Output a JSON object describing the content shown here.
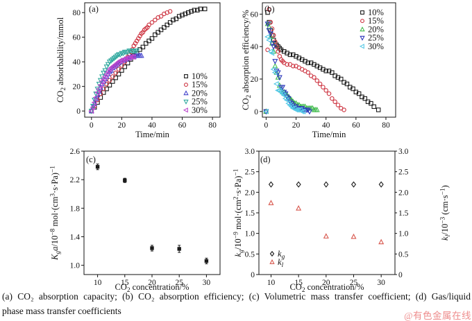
{
  "caption": {
    "line1": "(a) CO₂ absorption capacity; (b) CO₂ absorption efficiency; (c) Volumetric mass transfer coefficient; (d) Gas/liquid",
    "line2": "phase mass transfer coefficients"
  },
  "watermark": {
    "text": "@有色金属在线",
    "color": "#ee8d8d"
  },
  "chart_data": [
    {
      "id": "a",
      "type": "scatter",
      "tag": "(a)",
      "xlabel": "Time/min",
      "ylabel": "CO_{2} absorbability/mmol",
      "xlim": [
        -4.5,
        85
      ],
      "ylim": [
        -5,
        88
      ],
      "grid": false,
      "xticks": [
        0,
        20,
        40,
        60,
        80
      ],
      "xtick_labels": [
        "0",
        "20",
        "40",
        "60",
        "80"
      ],
      "yticks": [
        0,
        20,
        40,
        60,
        80
      ],
      "ytick_labels": [
        "0",
        "20",
        "40",
        "60",
        "80"
      ],
      "legend_position": "bottom-right",
      "series": [
        {
          "name": "10%",
          "label": "10%",
          "marker": "square",
          "color": "#1a1a1a",
          "x": [
            0,
            2,
            4,
            6,
            8,
            10,
            12,
            14,
            16,
            18,
            20,
            22,
            24,
            26,
            28,
            30,
            32,
            34,
            36,
            38,
            40,
            42,
            44,
            46,
            48,
            50,
            52,
            54,
            56,
            58,
            60,
            62,
            64,
            66,
            68,
            70,
            72,
            75
          ],
          "y": [
            0,
            3,
            7,
            11,
            15,
            18,
            21,
            24,
            27,
            30,
            33,
            36,
            39,
            42,
            45,
            47,
            50,
            52,
            55,
            57,
            59,
            62,
            64,
            66,
            68,
            70,
            72,
            74,
            75,
            77,
            78,
            79,
            80,
            81,
            82,
            82,
            83,
            83
          ]
        },
        {
          "name": "15%",
          "label": "15%",
          "marker": "circle",
          "color": "#cd3340",
          "x": [
            0,
            2,
            4,
            6,
            8,
            10,
            12,
            14,
            16,
            18,
            20,
            22,
            24,
            25,
            26,
            27,
            28,
            29,
            30,
            31,
            32,
            33,
            34,
            35,
            36,
            37,
            38,
            40,
            42,
            44,
            46,
            48,
            50,
            52
          ],
          "y": [
            0,
            4,
            9,
            14,
            18,
            22,
            25,
            28,
            31,
            34,
            37,
            40,
            44,
            46,
            48,
            50,
            53,
            55,
            57,
            59,
            61,
            63,
            64,
            66,
            67,
            68,
            70,
            72,
            74,
            76,
            77,
            79,
            80,
            81
          ]
        },
        {
          "name": "20%",
          "label": "20%",
          "marker": "triangle-up",
          "color": "#4444cc",
          "x": [
            0,
            1,
            2,
            3,
            4,
            5,
            6,
            7,
            8,
            9,
            10,
            11,
            12,
            13,
            14,
            15,
            16,
            17,
            18,
            19,
            20,
            21,
            22,
            23,
            24,
            25,
            26,
            27,
            28,
            29,
            30,
            31,
            32,
            33
          ],
          "y": [
            0,
            3,
            6,
            10,
            13,
            16,
            19,
            22,
            24,
            26,
            28,
            30,
            32,
            33,
            35,
            36,
            37,
            38,
            39,
            40,
            41,
            41,
            42,
            42,
            43,
            43,
            44,
            44,
            44,
            45,
            45,
            45,
            45,
            45
          ]
        },
        {
          "name": "25%",
          "label": "25%",
          "marker": "triangle-down",
          "color": "#2fa89e",
          "x": [
            0,
            1,
            2,
            3,
            4,
            5,
            6,
            7,
            8,
            9,
            10,
            11,
            12,
            13,
            14,
            15,
            16,
            17,
            18,
            19,
            20,
            21,
            22,
            23,
            24,
            25,
            26,
            27,
            28,
            29,
            30
          ],
          "y": [
            0,
            4,
            9,
            14,
            18,
            22,
            25,
            28,
            31,
            33,
            36,
            38,
            40,
            41,
            42,
            43,
            44,
            45,
            46,
            46,
            47,
            47,
            48,
            48,
            48,
            49,
            49,
            49,
            49,
            49,
            49
          ]
        },
        {
          "name": "30%",
          "label": "30%",
          "marker": "triangle-left",
          "color": "#bb45cc",
          "x": [
            0,
            1,
            2,
            3,
            4,
            5,
            6,
            7,
            8,
            9,
            10,
            11,
            12,
            13,
            14,
            15,
            16,
            17,
            18,
            19,
            20,
            21,
            22,
            23,
            24,
            25,
            26,
            27,
            28
          ],
          "y": [
            0,
            3,
            7,
            11,
            15,
            18,
            21,
            24,
            26,
            28,
            30,
            32,
            34,
            35,
            36,
            37,
            38,
            39,
            40,
            41,
            41,
            42,
            42,
            43,
            43,
            43,
            44,
            44,
            44
          ]
        }
      ]
    },
    {
      "id": "b",
      "type": "scatter",
      "tag": "(b)",
      "xlabel": "Time/min",
      "ylabel": "CO_{2} absorption efficiency/%",
      "xlim": [
        -2.5,
        86.5
      ],
      "ylim": [
        -3.5,
        67
      ],
      "grid": false,
      "xticks": [
        0,
        20,
        40,
        60,
        80
      ],
      "xtick_labels": [
        "0",
        "20",
        "40",
        "60",
        "80"
      ],
      "yticks": [
        0,
        20,
        40,
        60
      ],
      "ytick_labels": [
        "0",
        "20",
        "40",
        "60"
      ],
      "legend_position": "top-right",
      "series": [
        {
          "name": "10%",
          "label": "10%",
          "marker": "square",
          "color": "#1a1a1a",
          "x": [
            0,
            1,
            2,
            3,
            4,
            5,
            6,
            7,
            8,
            9,
            10,
            12,
            14,
            16,
            18,
            20,
            22,
            24,
            26,
            28,
            30,
            32,
            34,
            36,
            38,
            40,
            42,
            44,
            46,
            48,
            50,
            52,
            54,
            56,
            58,
            60,
            62,
            64,
            66,
            68,
            70,
            72,
            75
          ],
          "y": [
            0,
            61,
            55,
            50,
            47,
            44,
            42,
            41,
            40,
            39,
            38,
            37,
            36,
            35,
            35,
            34,
            33,
            32,
            31,
            30,
            30,
            29,
            28,
            27,
            26,
            25,
            25,
            24,
            22,
            21,
            20,
            18,
            17,
            15,
            14,
            12,
            11,
            9,
            8,
            6,
            5,
            3,
            1
          ]
        },
        {
          "name": "15%",
          "label": "15%",
          "marker": "circle",
          "color": "#cd3340",
          "x": [
            1,
            2,
            3,
            4,
            5,
            6,
            7,
            8,
            9,
            10,
            11,
            12,
            14,
            16,
            18,
            20,
            22,
            24,
            26,
            28,
            30,
            32,
            34,
            36,
            38,
            40,
            42,
            44,
            46,
            48,
            50,
            52
          ],
          "y": [
            38,
            63,
            55,
            51,
            47,
            43,
            40,
            37,
            34,
            32,
            31,
            30,
            29,
            29,
            28,
            28,
            27,
            26,
            25,
            24,
            22,
            21,
            19,
            17,
            15,
            13,
            11,
            8,
            6,
            4,
            2,
            1
          ]
        },
        {
          "name": "20%",
          "label": "20%",
          "marker": "triangle-up",
          "color": "#41bb4d",
          "x": [
            0,
            1,
            2,
            3,
            4,
            5,
            6,
            7,
            8,
            9,
            10,
            11,
            12,
            13,
            14,
            15,
            16,
            17,
            18,
            19,
            20,
            21,
            22,
            23,
            24,
            25,
            26,
            27,
            28,
            29,
            30,
            31,
            32,
            33,
            34
          ],
          "y": [
            0,
            54,
            52,
            46,
            42,
            37,
            28,
            24,
            21,
            16,
            13,
            12,
            12,
            11,
            10,
            9,
            8,
            7,
            6,
            5,
            5,
            4,
            4,
            3,
            3,
            3,
            3,
            2,
            2,
            2,
            2,
            2,
            1,
            1,
            1
          ]
        },
        {
          "name": "25%",
          "label": "25%",
          "marker": "triangle-down",
          "color": "#2a35bb",
          "x": [
            0,
            1,
            2,
            3,
            4,
            5,
            6,
            7,
            8,
            9,
            10,
            11,
            12,
            13,
            14,
            15,
            16,
            17,
            18,
            19,
            20,
            21,
            22,
            23,
            24,
            25,
            26,
            27,
            28,
            29
          ],
          "y": [
            0,
            54,
            50,
            48,
            42,
            40,
            31,
            25,
            24,
            21,
            15,
            15,
            12,
            11,
            9,
            8,
            6,
            5,
            4,
            3,
            3,
            2,
            2,
            2,
            2,
            1,
            1,
            1,
            1,
            0
          ]
        },
        {
          "name": "30%",
          "label": "30%",
          "marker": "triangle-left",
          "color": "#54c8e6",
          "x": [
            0,
            1,
            2,
            3,
            4,
            5,
            6,
            7,
            8,
            9,
            10,
            11,
            12,
            13,
            14,
            15,
            16,
            17,
            18,
            19,
            20,
            21,
            22,
            23,
            24,
            25
          ],
          "y": [
            0,
            46,
            44,
            37,
            36,
            26,
            24,
            17,
            13,
            13,
            12,
            11,
            10,
            8,
            7,
            5,
            4,
            3,
            2,
            2,
            1,
            1,
            1,
            1,
            0,
            0
          ]
        }
      ]
    },
    {
      "id": "c",
      "type": "scatter",
      "tag": "(c)",
      "xlabel": "CO_{2} concentration/%",
      "ylabel": "*K_{g}a*/10^{−8} mol·(cm^{3}·s·Pa)^{−1}",
      "xlim": [
        7.5,
        32.5
      ],
      "ylim": [
        0.87,
        2.6
      ],
      "grid": false,
      "xticks": [
        10,
        15,
        20,
        25,
        30
      ],
      "xtick_labels": [
        "10",
        "15",
        "20",
        "25",
        "30"
      ],
      "yticks": [
        1.0,
        1.4,
        1.8,
        2.2,
        2.6
      ],
      "ytick_labels": [
        "1.0",
        "1.4",
        "1.8",
        "2.2",
        "2.6"
      ],
      "legend_position": "none",
      "series": [
        {
          "name": "Kga",
          "label": "K_{g}a",
          "marker": "square-filled",
          "color": "#1a1a1a",
          "x": [
            10,
            15,
            20,
            25,
            30
          ],
          "y": [
            2.38,
            2.19,
            1.24,
            1.23,
            1.06
          ],
          "yerr": [
            0.04,
            0.03,
            0.04,
            0.05,
            0.04
          ]
        }
      ]
    },
    {
      "id": "d",
      "type": "scatter",
      "tag": "(d)",
      "xlabel": "CO_{2} concentration/%",
      "ylabel": "*k_{g}*/10^{−9} mol·(cm^{2}·s·Pa)^{−1}",
      "ylabel_right": "*k_{l}*/10^{−3} (cm·s^{−1})",
      "xlim": [
        7.8,
        32.5
      ],
      "ylim": [
        0,
        3.0
      ],
      "ylim_right": [
        0,
        3.0
      ],
      "grid": false,
      "xticks": [
        10,
        15,
        20,
        25,
        30
      ],
      "xtick_labels": [
        "10",
        "15",
        "20",
        "25",
        "30"
      ],
      "yticks": [
        0,
        0.5,
        1.0,
        1.5,
        2.0,
        2.5,
        3.0
      ],
      "ytick_labels": [
        "0",
        "0.5",
        "1.0",
        "1.5",
        "2.0",
        "2.5",
        "3.0"
      ],
      "yticks_right": [
        0,
        0.5,
        1.0,
        1.5,
        2.0,
        2.5,
        3.0
      ],
      "ytick_labels_right": [
        "0",
        "0.5",
        "1.0",
        "1.5",
        "2.0",
        "2.5",
        "3.0"
      ],
      "legend_position": "bottom-left",
      "series": [
        {
          "name": "kg",
          "label": "*k_{g}*",
          "marker": "diamond",
          "color": "#1a1a1a",
          "x": [
            10,
            15,
            20,
            25,
            30
          ],
          "y": [
            2.19,
            2.19,
            2.19,
            2.19,
            2.19
          ]
        },
        {
          "name": "kl",
          "label": "*k_{l}*",
          "marker": "triangle-up",
          "color": "#d8574d",
          "x": [
            10,
            15,
            20,
            25,
            30
          ],
          "y": [
            1.74,
            1.61,
            0.93,
            0.92,
            0.79
          ]
        }
      ]
    }
  ]
}
